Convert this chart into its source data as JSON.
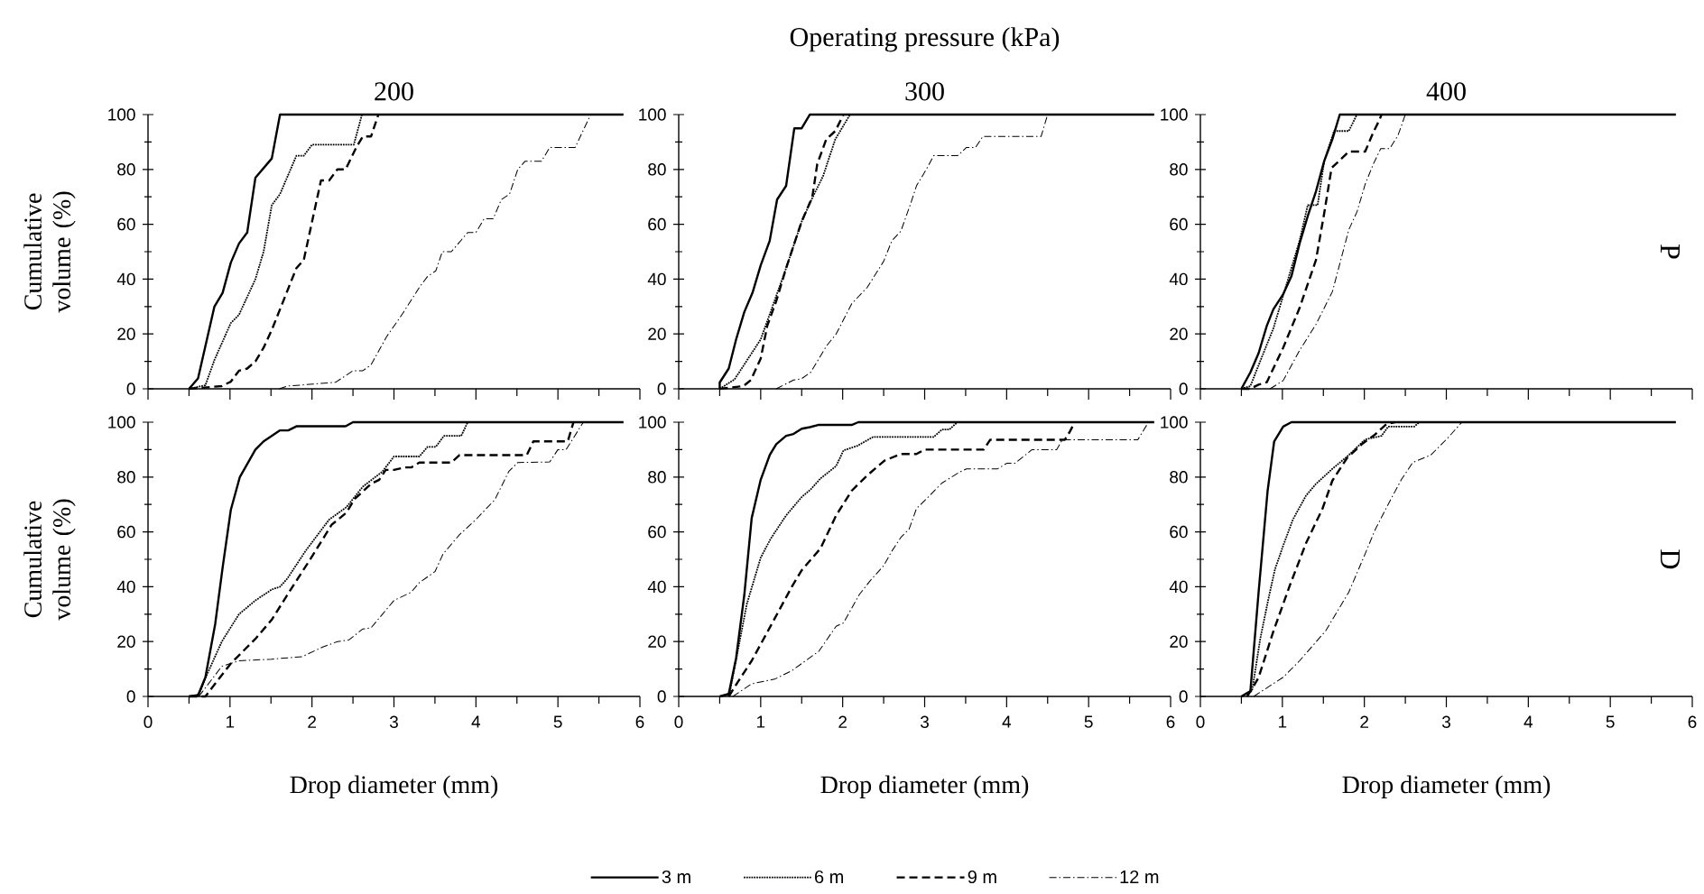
{
  "chart_data": [
    {
      "type": "line",
      "subtitle": "200",
      "ylabel": "Cumulative volume (%)",
      "xlim": [
        0,
        6
      ],
      "ylim": [
        0,
        100
      ],
      "xticks": [
        0,
        1,
        2,
        3,
        4,
        5,
        6
      ],
      "yticks": [
        0,
        20,
        40,
        60,
        80,
        100
      ],
      "tick_labels": "y",
      "series": [
        {
          "color": "#000000",
          "line_style": "solid",
          "x": [
            0.5,
            0.61,
            0.81,
            0.91,
            1.01,
            1.11,
            1.21,
            1.31,
            1.51,
            1.61,
            5.8
          ],
          "values": [
            0,
            3.8,
            30,
            35,
            46,
            53,
            57,
            77,
            84,
            100,
            100
          ]
        },
        {
          "color": "#000000",
          "line_style": "dotted",
          "x": [
            0.5,
            0.7,
            0.81,
            1.01,
            1.11,
            1.31,
            1.41,
            1.51,
            1.61,
            1.81,
            1.9,
            2.0,
            2.51,
            2.61
          ],
          "values": [
            0,
            1.3,
            10.5,
            24,
            27,
            40,
            50,
            67,
            71,
            85,
            85,
            89,
            89,
            100
          ]
        },
        {
          "color": "#000000",
          "line_style": "dashed",
          "x": [
            0.5,
            0.9,
            1.01,
            1.11,
            1.21,
            1.31,
            1.41,
            1.51,
            1.61,
            1.81,
            1.9,
            2.11,
            2.21,
            2.31,
            2.41,
            2.54,
            2.62,
            2.72,
            2.81
          ],
          "values": [
            0,
            1,
            2.6,
            6.6,
            7.4,
            10,
            15,
            21.5,
            29,
            44,
            47,
            76,
            76,
            80,
            80,
            88,
            92,
            92,
            100
          ]
        },
        {
          "color": "#000000",
          "line_style": "dashdot",
          "x": [
            1.6,
            1.7,
            2.01,
            2.29,
            2.5,
            2.62,
            2.72,
            2.91,
            3.11,
            3.31,
            3.41,
            3.51,
            3.59,
            3.7,
            3.9,
            4.0,
            4.1,
            4.21,
            4.31,
            4.41,
            4.51,
            4.6,
            4.8,
            4.9,
            5.21,
            5.4
          ],
          "values": [
            0,
            1,
            1.7,
            2.4,
            6.6,
            6.6,
            8.7,
            19,
            27.6,
            37,
            41,
            43,
            50,
            50,
            57,
            57,
            62,
            62,
            69,
            71,
            80,
            83,
            83,
            88,
            88,
            100
          ]
        }
      ]
    },
    {
      "type": "line",
      "title": "Operating pressure (kPa)",
      "subtitle": "300",
      "xlim": [
        0,
        6
      ],
      "ylim": [
        0,
        100
      ],
      "xticks": [
        0,
        1,
        2,
        3,
        4,
        5,
        6
      ],
      "yticks": [
        0,
        20,
        40,
        60,
        80,
        100
      ],
      "tick_labels": "y",
      "series": [
        {
          "color": "#000000",
          "line_style": "solid",
          "x": [
            0.5,
            0.5,
            0.61,
            0.7,
            0.8,
            0.9,
            1.0,
            1.11,
            1.2,
            1.31,
            1.41,
            1.5,
            1.6,
            5.8
          ],
          "values": [
            0,
            2.3,
            7.4,
            18,
            28,
            35,
            45,
            54,
            69,
            74,
            95,
            95,
            100,
            100
          ]
        },
        {
          "color": "#000000",
          "line_style": "dotted",
          "x": [
            0.5,
            0.68,
            1.0,
            1.12,
            1.31,
            1.5,
            1.62,
            1.76,
            1.91,
            2.09
          ],
          "values": [
            0,
            3.4,
            18,
            28,
            44,
            61,
            69,
            77.5,
            91,
            100
          ]
        },
        {
          "color": "#000000",
          "line_style": "dashed",
          "x": [
            0.5,
            0.79,
            0.88,
            1.0,
            1.08,
            1.19,
            1.31,
            1.41,
            1.5,
            1.63,
            1.69,
            1.8,
            1.91,
            1.96,
            2.01
          ],
          "values": [
            0,
            1,
            3.2,
            11,
            23,
            32,
            44,
            53,
            61,
            70,
            82,
            91,
            94,
            97,
            100
          ]
        },
        {
          "color": "#000000",
          "line_style": "dashdot",
          "x": [
            1.19,
            1.4,
            1.5,
            1.61,
            1.8,
            1.92,
            2.11,
            2.3,
            2.5,
            2.6,
            2.71,
            2.83,
            2.9,
            3.02,
            3.11,
            3.4,
            3.51,
            3.62,
            3.71,
            4.42,
            4.5
          ],
          "values": [
            0,
            3.2,
            3.7,
            6,
            15.5,
            20,
            31,
            37,
            46.5,
            54,
            57.5,
            67.6,
            74,
            80,
            85,
            85,
            88,
            88,
            92,
            92,
            100
          ]
        }
      ]
    },
    {
      "type": "line",
      "subtitle": "400",
      "annotations": [
        "P"
      ],
      "xlim": [
        0,
        6
      ],
      "ylim": [
        0,
        100
      ],
      "xticks": [
        0,
        1,
        2,
        3,
        4,
        5,
        6
      ],
      "yticks": [
        0,
        20,
        40,
        60,
        80,
        100
      ],
      "tick_labels": "y",
      "series": [
        {
          "color": "#000000",
          "line_style": "solid",
          "x": [
            0.5,
            0.61,
            0.71,
            0.81,
            0.89,
            1.01,
            1.11,
            1.21,
            1.31,
            1.41,
            1.51,
            1.61,
            1.7,
            5.8
          ],
          "values": [
            0,
            6,
            13,
            23,
            29,
            34.5,
            41,
            53,
            63,
            72,
            83,
            91,
            100,
            100
          ]
        },
        {
          "color": "#000000",
          "line_style": "dotted",
          "x": [
            0.5,
            0.61,
            0.75,
            0.89,
            1.01,
            1.21,
            1.31,
            1.43,
            1.51,
            1.63,
            1.81,
            1.91
          ],
          "values": [
            0,
            1,
            11.6,
            22,
            34,
            54,
            67,
            67,
            83,
            94,
            94,
            100
          ]
        },
        {
          "color": "#000000",
          "line_style": "dashed",
          "x": [
            0.5,
            0.61,
            0.71,
            0.81,
            1.01,
            1.21,
            1.41,
            1.51,
            1.6,
            1.81,
            2.01,
            2.11,
            2.18,
            2.21
          ],
          "values": [
            0,
            0,
            1.5,
            2.4,
            15,
            29.5,
            47,
            64,
            80.5,
            86.5,
            86.5,
            93.6,
            97.8,
            100
          ]
        },
        {
          "color": "#000000",
          "line_style": "dashdot",
          "x": [
            0.85,
            1.01,
            1.21,
            1.41,
            1.61,
            1.81,
            1.91,
            2.01,
            2.11,
            2.2,
            2.31,
            2.41,
            2.5
          ],
          "values": [
            0,
            3,
            14,
            23.5,
            35.4,
            58,
            64.5,
            74.6,
            82,
            87.6,
            87.6,
            92.4,
            100
          ]
        }
      ]
    },
    {
      "type": "line",
      "xlabel": "Drop diameter (mm)",
      "ylabel": "Cumulative volume (%)",
      "xlim": [
        0,
        6
      ],
      "ylim": [
        0,
        100
      ],
      "xticks": [
        0,
        1,
        2,
        3,
        4,
        5,
        6
      ],
      "yticks": [
        0,
        20,
        40,
        60,
        80,
        100
      ],
      "series": [
        {
          "color": "#000000",
          "line_style": "solid",
          "x": [
            0.5,
            0.61,
            0.7,
            0.82,
            0.91,
            1.01,
            1.12,
            1.31,
            1.41,
            1.61,
            1.71,
            1.81,
            2.41,
            2.5,
            5.8
          ],
          "values": [
            0,
            0.4,
            7,
            26.5,
            47,
            68,
            80,
            90,
            93,
            97,
            97,
            98.5,
            98.5,
            100,
            100
          ]
        },
        {
          "color": "#000000",
          "line_style": "dotted",
          "x": [
            0.5,
            0.62,
            0.72,
            0.9,
            1.11,
            1.31,
            1.51,
            1.61,
            1.7,
            1.92,
            2.21,
            2.42,
            2.62,
            2.86,
            3.0,
            3.31,
            3.41,
            3.51,
            3.61,
            3.82,
            3.9
          ],
          "values": [
            0,
            0.7,
            8,
            20,
            30,
            35,
            39,
            40,
            43,
            53,
            64.5,
            69,
            76.5,
            82,
            87.5,
            87.5,
            91,
            91,
            95,
            95,
            100
          ]
        },
        {
          "color": "#000000",
          "line_style": "dashed",
          "x": [
            0.5,
            0.7,
            0.82,
            1.01,
            1.31,
            1.51,
            1.72,
            2.0,
            2.24,
            2.42,
            2.52,
            2.72,
            2.82,
            2.9,
            3.0,
            3.13,
            3.21,
            3.31,
            3.7,
            3.8,
            4.62,
            4.7,
            5.12,
            5.19
          ],
          "values": [
            0,
            0,
            4.7,
            12,
            21,
            28,
            38,
            51,
            62.6,
            67,
            72,
            77.5,
            79,
            82.6,
            82.6,
            83.5,
            83.5,
            85.3,
            85.3,
            88,
            88,
            93,
            93,
            100
          ]
        },
        {
          "color": "#000000",
          "line_style": "dashdot",
          "x": [
            0.62,
            0.9,
            1.11,
            1.51,
            1.88,
            2.13,
            2.31,
            2.45,
            2.62,
            2.72,
            3.0,
            3.21,
            3.31,
            3.5,
            3.6,
            3.8,
            4.0,
            4.13,
            4.23,
            4.4,
            4.51,
            4.9,
            5.0,
            5.1,
            5.31
          ],
          "values": [
            0,
            11,
            13,
            13.6,
            14.5,
            18,
            20,
            20.6,
            24.6,
            25,
            35,
            38,
            41.5,
            45.5,
            52,
            59,
            64.5,
            68.6,
            71.7,
            82,
            85.3,
            85.5,
            90,
            90,
            100
          ]
        }
      ]
    },
    {
      "type": "line",
      "xlabel": "Drop diameter (mm)",
      "legend": "bottom",
      "xlim": [
        0,
        6
      ],
      "ylim": [
        0,
        100
      ],
      "xticks": [
        0,
        1,
        2,
        3,
        4,
        5,
        6
      ],
      "yticks": [
        0,
        20,
        40,
        60,
        80,
        100
      ],
      "series": [
        {
          "name": "3 m",
          "color": "#000000",
          "line_style": "solid",
          "x": [
            0.5,
            0.61,
            0.7,
            0.8,
            0.89,
            1.0,
            1.11,
            1.19,
            1.31,
            1.4,
            1.5,
            1.6,
            1.7,
            2.11,
            2.19,
            5.8
          ],
          "values": [
            0,
            0.9,
            14,
            37,
            65,
            79,
            88,
            92,
            95,
            95.7,
            97.6,
            98.2,
            99,
            99,
            100,
            100
          ]
        },
        {
          "name": "6 m",
          "color": "#000000",
          "line_style": "dotted",
          "x": [
            0.5,
            0.62,
            0.72,
            0.83,
            1.0,
            1.12,
            1.31,
            1.5,
            1.61,
            1.73,
            1.92,
            2.01,
            2.18,
            2.37,
            3.11,
            3.21,
            3.3,
            3.4
          ],
          "values": [
            0,
            1,
            16.5,
            33.6,
            50.6,
            57.4,
            66,
            72.7,
            75.5,
            79.5,
            84,
            89.7,
            91.4,
            94.6,
            94.6,
            97.3,
            97.3,
            100
          ]
        },
        {
          "name": "9 m",
          "color": "#000000",
          "line_style": "dashed",
          "x": [
            0.61,
            0.72,
            0.89,
            1.12,
            1.38,
            1.5,
            1.73,
            1.92,
            2.11,
            2.3,
            2.51,
            2.71,
            2.9,
            3.0,
            3.72,
            3.8,
            4.71,
            4.77,
            4.83
          ],
          "values": [
            0,
            5.2,
            13,
            25.6,
            40,
            46,
            54,
            66,
            75,
            80.6,
            86,
            88.4,
            88.4,
            90,
            90,
            93.6,
            93.6,
            96.5,
            100
          ]
        },
        {
          "name": "12 m",
          "color": "#000000",
          "line_style": "dashdot",
          "x": [
            0.66,
            0.89,
            1.17,
            1.38,
            1.71,
            1.92,
            2.01,
            2.2,
            2.33,
            2.5,
            2.6,
            2.71,
            2.81,
            2.9,
            3.02,
            3.21,
            3.42,
            3.51,
            3.89,
            4.0,
            4.1,
            4.31,
            4.61,
            4.68,
            5.6,
            5.73
          ],
          "values": [
            0,
            4.6,
            6.3,
            9.4,
            16.5,
            25.6,
            26.8,
            37,
            42,
            47.7,
            53,
            58,
            61,
            68.5,
            72,
            77.8,
            81.7,
            83,
            83,
            85,
            85,
            90,
            90,
            93.6,
            93.6,
            100
          ]
        }
      ]
    },
    {
      "type": "line",
      "xlabel": "Drop diameter (mm)",
      "annotations": [
        "D"
      ],
      "xlim": [
        0,
        6
      ],
      "ylim": [
        0,
        100
      ],
      "xticks": [
        0,
        1,
        2,
        3,
        4,
        5,
        6
      ],
      "yticks": [
        0,
        20,
        40,
        60,
        80,
        100
      ],
      "series": [
        {
          "color": "#000000",
          "line_style": "solid",
          "x": [
            0.5,
            0.61,
            0.71,
            0.82,
            0.9,
            1.01,
            1.11,
            5.8
          ],
          "values": [
            0,
            2,
            38,
            75,
            93,
            98.4,
            100,
            100
          ]
        },
        {
          "color": "#000000",
          "line_style": "dotted",
          "x": [
            0.5,
            0.63,
            0.73,
            0.83,
            0.91,
            1.01,
            1.13,
            1.29,
            1.41,
            1.61,
            1.81,
            2.01,
            2.21,
            2.29,
            2.61,
            2.67
          ],
          "values": [
            0,
            2,
            21,
            35.6,
            46.4,
            55,
            64.6,
            73.3,
            77.5,
            83,
            88,
            93.7,
            95,
            98.4,
            98.4,
            100
          ]
        },
        {
          "color": "#000000",
          "line_style": "dashed",
          "x": [
            0.57,
            0.63,
            0.71,
            0.89,
            1.09,
            1.29,
            1.49,
            1.61,
            1.79,
            1.97,
            2.13,
            2.27,
            2.37
          ],
          "values": [
            0,
            2.8,
            6.9,
            23.7,
            40.4,
            56,
            68.5,
            78.7,
            87,
            92,
            95.5,
            99.3,
            100
          ]
        },
        {
          "color": "#000000",
          "line_style": "dashdot",
          "x": [
            0.65,
            1.01,
            1.21,
            1.53,
            1.81,
            2.01,
            2.13,
            2.29,
            2.45,
            2.59,
            2.81,
            3.01,
            3.19
          ],
          "values": [
            0,
            7,
            13,
            24,
            38,
            52,
            60.7,
            70,
            79,
            85.3,
            88,
            94,
            100
          ]
        }
      ]
    }
  ]
}
